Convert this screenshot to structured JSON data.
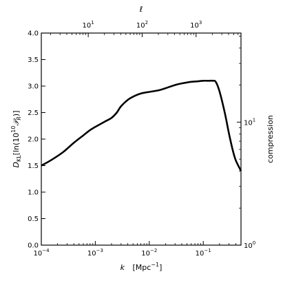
{
  "chart_data": {
    "type": "line",
    "title": "",
    "xlabel_symbol": "k",
    "xlabel_units": "[Mpc",
    "xlabel_units_exp": "−1",
    "xlabel_units_close": "]",
    "xscale": "log",
    "xlim": [
      0.0001,
      0.5
    ],
    "ylabel": "D_KL[ln(10^10 P_R)]",
    "ylim": [
      0,
      4.0
    ],
    "top_axis_label": "ℓ",
    "top_axis_scale": "log",
    "right_axis_label": "compression",
    "right_axis_scale": "log",
    "grid": false,
    "legend": "none",
    "x_ticks": [
      {
        "value": 0.0001,
        "mant": "10",
        "exp": "−4"
      },
      {
        "value": 0.001,
        "mant": "10",
        "exp": "−3"
      },
      {
        "value": 0.01,
        "mant": "10",
        "exp": "−2"
      },
      {
        "value": 0.1,
        "mant": "10",
        "exp": "−1"
      }
    ],
    "y_ticks": [
      "0.0",
      "0.5",
      "1.0",
      "1.5",
      "2.0",
      "2.5",
      "3.0",
      "3.5",
      "4.0"
    ],
    "top_ticks": [
      {
        "mant": "10",
        "exp": "1",
        "frac": 0.235
      },
      {
        "mant": "10",
        "exp": "2",
        "frac": 0.505
      },
      {
        "mant": "10",
        "exp": "3",
        "frac": 0.775
      }
    ],
    "right_ticks": [
      {
        "mant": "10",
        "exp": "0",
        "frac": 0.0
      },
      {
        "mant": "10",
        "exp": "1",
        "frac": 0.58
      }
    ],
    "series": [
      {
        "color": "#000000",
        "x": [
          0.0001,
          0.00015,
          0.00025,
          0.0004,
          0.0006,
          0.0008,
          0.001,
          0.0015,
          0.002,
          0.0025,
          0.003,
          0.004,
          0.005,
          0.007,
          0.01,
          0.015,
          0.02,
          0.03,
          0.04,
          0.06,
          0.08,
          0.1,
          0.13,
          0.15,
          0.17,
          0.2,
          0.25,
          0.3,
          0.35,
          0.4,
          0.5
        ],
        "y": [
          1.5,
          1.6,
          1.75,
          1.93,
          2.07,
          2.17,
          2.23,
          2.33,
          2.4,
          2.5,
          2.62,
          2.74,
          2.8,
          2.86,
          2.89,
          2.92,
          2.96,
          3.02,
          3.05,
          3.08,
          3.09,
          3.1,
          3.1,
          3.1,
          3.08,
          2.9,
          2.5,
          2.1,
          1.8,
          1.6,
          1.4
        ]
      }
    ]
  }
}
